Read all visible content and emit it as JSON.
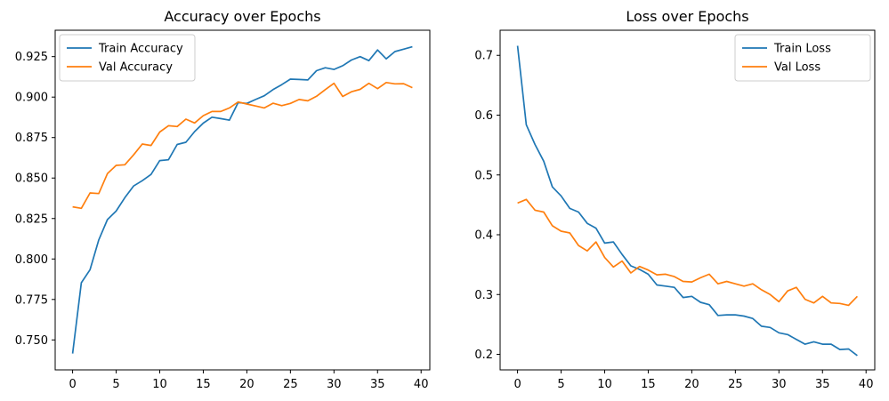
{
  "chart_data": [
    {
      "type": "line",
      "title": "Accuracy over Epochs",
      "xlabel": "",
      "ylabel": "",
      "xlim": [
        -2,
        41
      ],
      "ylim": [
        0.7315,
        0.9413
      ],
      "xticks": [
        0,
        5,
        10,
        15,
        20,
        25,
        30,
        35,
        40
      ],
      "xtick_labels": [
        "0",
        "5",
        "10",
        "15",
        "20",
        "25",
        "30",
        "35",
        "40"
      ],
      "yticks": [
        0.75,
        0.775,
        0.8,
        0.825,
        0.85,
        0.875,
        0.9,
        0.925
      ],
      "ytick_labels": [
        "0.750",
        "0.775",
        "0.800",
        "0.825",
        "0.850",
        "0.875",
        "0.900",
        "0.925"
      ],
      "legend": "top-left",
      "grid": false,
      "x": [
        0,
        1,
        2,
        3,
        4,
        5,
        6,
        7,
        8,
        9,
        10,
        11,
        12,
        13,
        14,
        15,
        16,
        17,
        18,
        19,
        20,
        21,
        22,
        23,
        24,
        25,
        26,
        27,
        28,
        29,
        30,
        31,
        32,
        33,
        34,
        35,
        36,
        37,
        38,
        39
      ],
      "series": [
        {
          "name": "Train Accuracy",
          "color": "#1f77b4",
          "values": [
            0.7416,
            0.7853,
            0.7934,
            0.8118,
            0.8243,
            0.8296,
            0.8379,
            0.8451,
            0.8484,
            0.8522,
            0.8608,
            0.8613,
            0.8707,
            0.8721,
            0.8787,
            0.8839,
            0.8876,
            0.8867,
            0.8858,
            0.8966,
            0.8961,
            0.8985,
            0.9008,
            0.9046,
            0.9077,
            0.9111,
            0.9109,
            0.9106,
            0.9163,
            0.9181,
            0.9171,
            0.9194,
            0.9229,
            0.925,
            0.9225,
            0.9291,
            0.9236,
            0.9281,
            0.9296,
            0.9311
          ]
        },
        {
          "name": "Val Accuracy",
          "color": "#ff7f0e",
          "values": [
            0.8322,
            0.8313,
            0.8408,
            0.8404,
            0.8527,
            0.8578,
            0.8582,
            0.8643,
            0.871,
            0.8701,
            0.8784,
            0.8823,
            0.8818,
            0.8864,
            0.884,
            0.8885,
            0.8911,
            0.8911,
            0.8933,
            0.897,
            0.8957,
            0.8945,
            0.8933,
            0.8962,
            0.8947,
            0.8961,
            0.8985,
            0.8977,
            0.9005,
            0.9046,
            0.9085,
            0.9004,
            0.9033,
            0.9048,
            0.9085,
            0.9052,
            0.909,
            0.9082,
            0.9083,
            0.9058
          ]
        }
      ]
    },
    {
      "type": "line",
      "title": "Loss over Epochs",
      "xlabel": "",
      "ylabel": "",
      "xlim": [
        -2,
        41
      ],
      "ylim": [
        0.174,
        0.742
      ],
      "xticks": [
        0,
        5,
        10,
        15,
        20,
        25,
        30,
        35,
        40
      ],
      "xtick_labels": [
        "0",
        "5",
        "10",
        "15",
        "20",
        "25",
        "30",
        "35",
        "40"
      ],
      "yticks": [
        0.2,
        0.3,
        0.4,
        0.5,
        0.6,
        0.7
      ],
      "ytick_labels": [
        "0.2",
        "0.3",
        "0.4",
        "0.5",
        "0.6",
        "0.7"
      ],
      "legend": "top-right",
      "grid": false,
      "x": [
        0,
        1,
        2,
        3,
        4,
        5,
        6,
        7,
        8,
        9,
        10,
        11,
        12,
        13,
        14,
        15,
        16,
        17,
        18,
        19,
        20,
        21,
        22,
        23,
        24,
        25,
        26,
        27,
        28,
        29,
        30,
        31,
        32,
        33,
        34,
        35,
        36,
        37,
        38,
        39
      ],
      "series": [
        {
          "name": "Train Loss",
          "color": "#1f77b4",
          "values": [
            0.716,
            0.584,
            0.551,
            0.523,
            0.48,
            0.465,
            0.444,
            0.438,
            0.419,
            0.411,
            0.386,
            0.388,
            0.367,
            0.348,
            0.342,
            0.334,
            0.316,
            0.314,
            0.312,
            0.295,
            0.297,
            0.287,
            0.283,
            0.265,
            0.266,
            0.266,
            0.264,
            0.26,
            0.247,
            0.245,
            0.236,
            0.233,
            0.225,
            0.217,
            0.221,
            0.217,
            0.217,
            0.208,
            0.209,
            0.198
          ]
        },
        {
          "name": "Val Loss",
          "color": "#ff7f0e",
          "values": [
            0.453,
            0.459,
            0.441,
            0.438,
            0.415,
            0.406,
            0.403,
            0.382,
            0.373,
            0.388,
            0.362,
            0.346,
            0.356,
            0.336,
            0.347,
            0.341,
            0.333,
            0.334,
            0.33,
            0.322,
            0.321,
            0.328,
            0.334,
            0.318,
            0.322,
            0.318,
            0.314,
            0.318,
            0.308,
            0.3,
            0.288,
            0.306,
            0.312,
            0.292,
            0.286,
            0.297,
            0.286,
            0.285,
            0.282,
            0.297
          ]
        }
      ]
    }
  ]
}
